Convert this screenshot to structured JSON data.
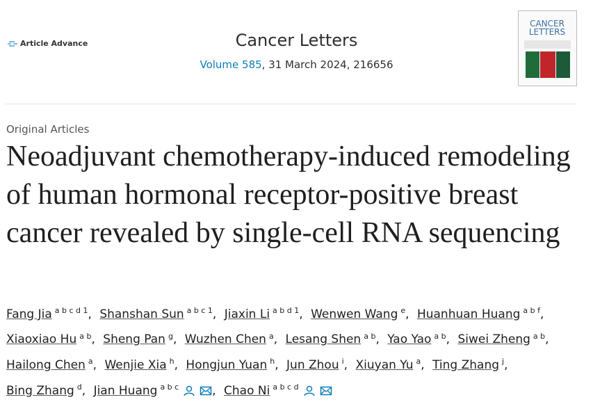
{
  "header": {
    "badge": "Article Advance",
    "journal": "Cancer Letters",
    "volume": "Volume 585",
    "issue_info": ", 31 March 2024, 216656",
    "cover": {
      "title_lines": [
        "CANCER",
        "LETTERS"
      ]
    }
  },
  "article": {
    "type": "Original Articles",
    "title": "Neoadjuvant chemotherapy-induced remodeling of human hormonal receptor-positive breast cancer revealed by single-cell RNA sequencing",
    "authors": [
      {
        "name": "Fang Jia",
        "affiliations": "a b c d 1"
      },
      {
        "name": "Shanshan Sun",
        "affiliations": "a b c 1"
      },
      {
        "name": "Jiaxin Li",
        "affiliations": "a b d 1"
      },
      {
        "name": "Wenwen Wang",
        "affiliations": "e"
      },
      {
        "name": "Huanhuan Huang",
        "affiliations": "a b f"
      },
      {
        "name": "Xiaoxiao Hu",
        "affiliations": "a b"
      },
      {
        "name": "Sheng Pan",
        "affiliations": "g"
      },
      {
        "name": "Wuzhen Chen",
        "affiliations": "a"
      },
      {
        "name": "Lesang Shen",
        "affiliations": "a b"
      },
      {
        "name": "Yao Yao",
        "affiliations": "a b"
      },
      {
        "name": "Siwei Zheng",
        "affiliations": "a b"
      },
      {
        "name": "Hailong Chen",
        "affiliations": "a"
      },
      {
        "name": "Wenjie Xia",
        "affiliations": "h"
      },
      {
        "name": "Hongjun Yuan",
        "affiliations": "h"
      },
      {
        "name": "Jun Zhou",
        "affiliations": "i"
      },
      {
        "name": "Xiuyan Yu",
        "affiliations": "a"
      },
      {
        "name": "Ting Zhang",
        "affiliations": "j"
      },
      {
        "name": "Bing Zhang",
        "affiliations": "d"
      },
      {
        "name": "Jian Huang",
        "affiliations": "a b c",
        "corresponding": true
      },
      {
        "name": "Chao Ni",
        "affiliations": "a b c d",
        "corresponding": true
      }
    ]
  }
}
